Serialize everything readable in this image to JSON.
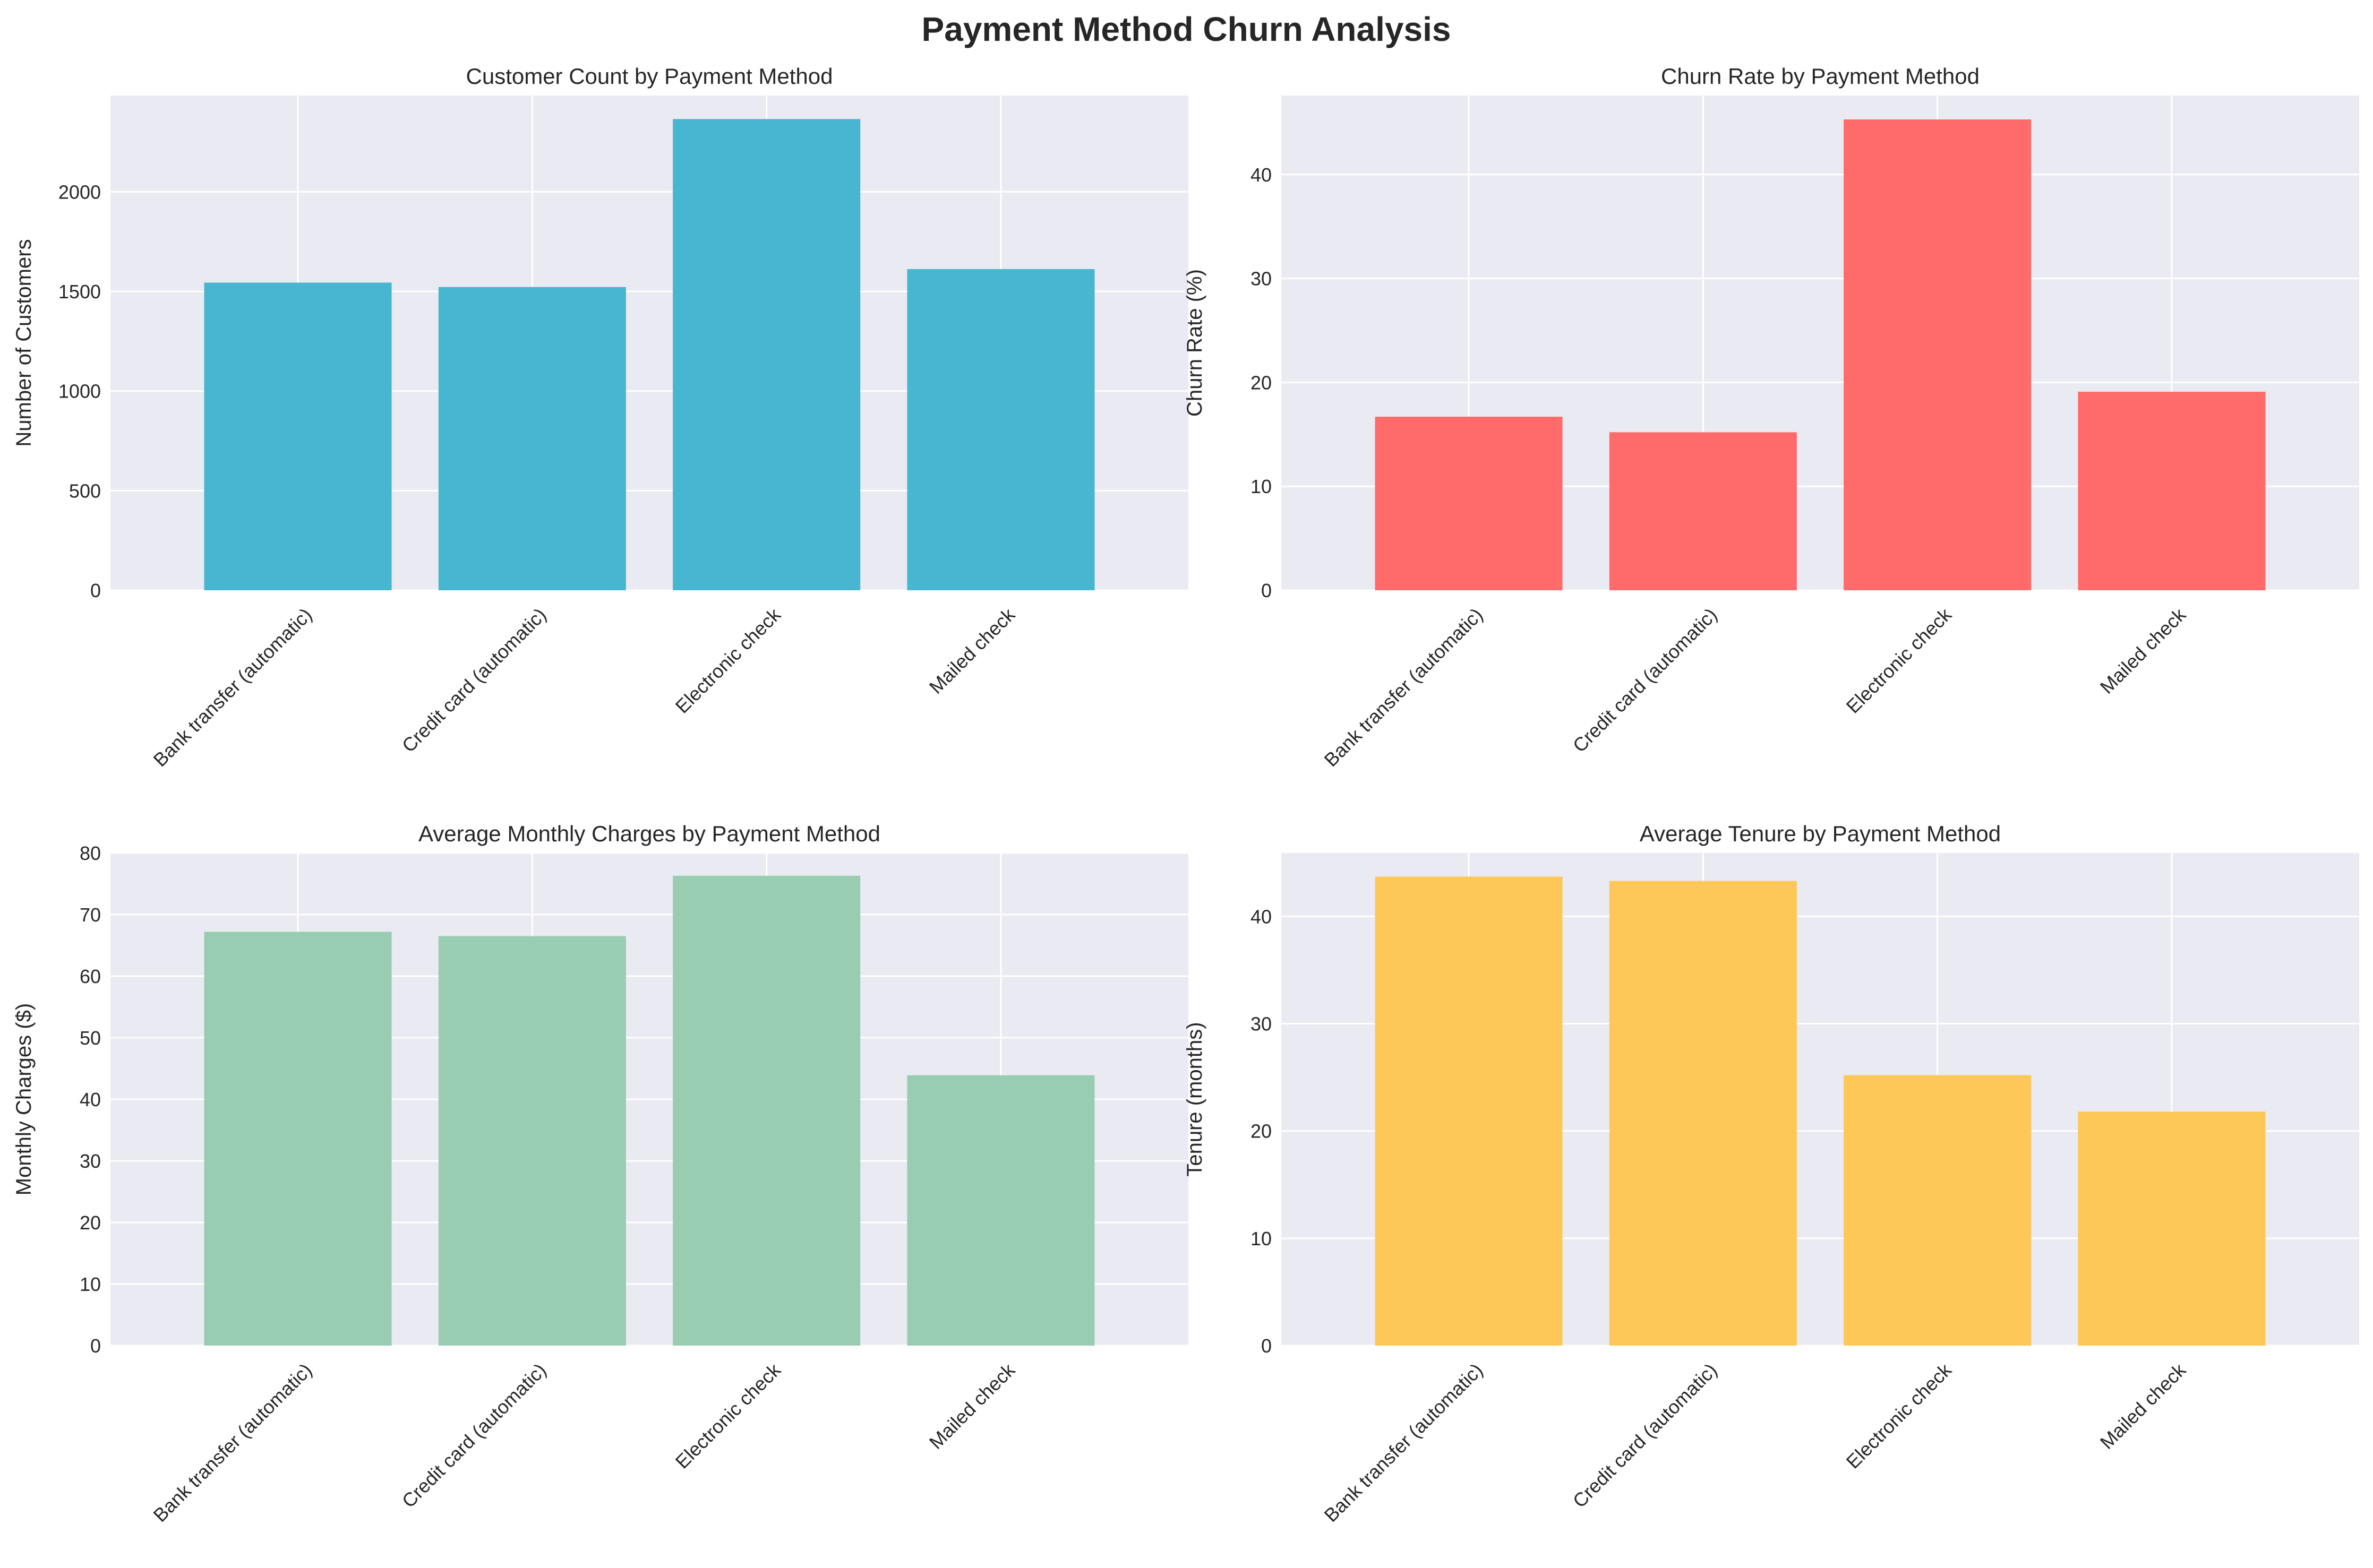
{
  "figure": {
    "title": "Payment Method Churn Analysis",
    "background": "#ffffff",
    "axes_face": "#eaeaf2",
    "grid_color": "#ffffff",
    "text_color": "#262626"
  },
  "chart_data": [
    {
      "type": "bar",
      "title": "Customer Count by Payment Method",
      "xlabel": "",
      "ylabel": "Number of Customers",
      "categories": [
        "Bank transfer (automatic)",
        "Credit card (automatic)",
        "Electronic check",
        "Mailed check"
      ],
      "values": [
        1544,
        1522,
        2365,
        1612
      ],
      "ylim": [
        0,
        2483
      ],
      "yticks": [
        0,
        500,
        1000,
        1500,
        2000
      ],
      "color": "#48b5d1",
      "grid": true
    },
    {
      "type": "bar",
      "title": "Churn Rate by Payment Method",
      "xlabel": "",
      "ylabel": "Churn Rate (%)",
      "categories": [
        "Bank transfer (automatic)",
        "Credit card (automatic)",
        "Electronic check",
        "Mailed check"
      ],
      "values": [
        16.7,
        15.2,
        45.3,
        19.1
      ],
      "ylim": [
        0,
        47.6
      ],
      "yticks": [
        0,
        10,
        20,
        30,
        40
      ],
      "color": "#ff6b6b",
      "grid": true
    },
    {
      "type": "bar",
      "title": "Average Monthly Charges by Payment Method",
      "xlabel": "",
      "ylabel": "Monthly Charges ($)",
      "categories": [
        "Bank transfer (automatic)",
        "Credit card (automatic)",
        "Electronic check",
        "Mailed check"
      ],
      "values": [
        67.2,
        66.5,
        76.3,
        43.9
      ],
      "ylim": [
        0,
        80
      ],
      "yticks": [
        0,
        10,
        20,
        30,
        40,
        50,
        60,
        70,
        80
      ],
      "color": "#98cdb1",
      "grid": true
    },
    {
      "type": "bar",
      "title": "Average Tenure by Payment Method",
      "xlabel": "",
      "ylabel": "Tenure (months)",
      "categories": [
        "Bank transfer (automatic)",
        "Credit card (automatic)",
        "Electronic check",
        "Mailed check"
      ],
      "values": [
        43.7,
        43.3,
        25.2,
        21.8
      ],
      "ylim": [
        0,
        45.9
      ],
      "yticks": [
        0,
        10,
        20,
        30,
        40
      ],
      "color": "#fdc857",
      "grid": true
    }
  ]
}
